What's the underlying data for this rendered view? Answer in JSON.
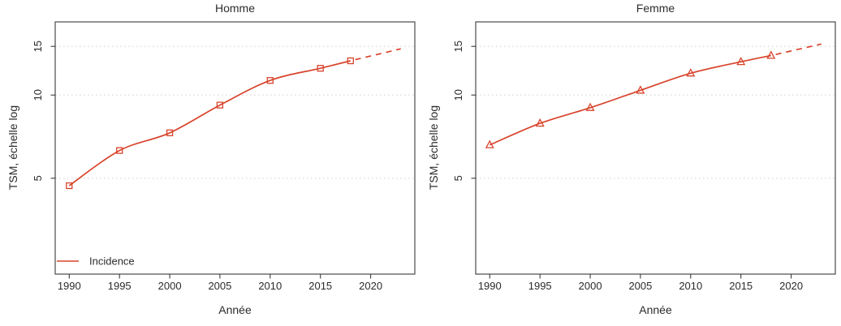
{
  "figure": {
    "accent_color": "#d8432b",
    "grid_color": "#d6d6d6",
    "axis_color": "#3a3a3a",
    "text_color": "#2b2b2b",
    "background": "#ffffff"
  },
  "chart_data": [
    {
      "type": "line",
      "title": "Homme",
      "xlabel": "Année",
      "ylabel": "TSM, échelle log",
      "y_scale": "log",
      "x_ticks": [
        1990,
        1995,
        2000,
        2005,
        2010,
        2015,
        2020
      ],
      "y_ticks": [
        5,
        10,
        15
      ],
      "xlim": [
        1988.6,
        2024.4
      ],
      "ylim": [
        2.25,
        18.4
      ],
      "grid": "horizontal-dotted",
      "legend": {
        "position": "bottom-left",
        "entries": [
          {
            "label": "Incidence",
            "swatch": "line"
          }
        ]
      },
      "series": [
        {
          "name": "Incidence",
          "marker": "open-square",
          "x": [
            1990,
            1995,
            2000,
            2005,
            2010,
            2015,
            2018
          ],
          "y": [
            4.7,
            6.3,
            7.3,
            9.2,
            11.3,
            12.5,
            13.3
          ]
        }
      ],
      "projection": {
        "style": "dashed",
        "x": [
          2018,
          2023
        ],
        "y": [
          13.3,
          14.7
        ]
      }
    },
    {
      "type": "line",
      "title": "Femme",
      "xlabel": "Année",
      "ylabel": "TSM, échelle log",
      "y_scale": "log",
      "x_ticks": [
        1990,
        1995,
        2000,
        2005,
        2010,
        2015,
        2020
      ],
      "y_ticks": [
        5,
        10,
        15
      ],
      "xlim": [
        1988.6,
        2024.4
      ],
      "ylim": [
        2.25,
        18.4
      ],
      "grid": "horizontal-dotted",
      "legend": null,
      "series": [
        {
          "name": "Incidence",
          "marker": "open-triangle",
          "x": [
            1990,
            1995,
            2000,
            2005,
            2010,
            2015,
            2018
          ],
          "y": [
            6.6,
            7.9,
            9.0,
            10.4,
            12.0,
            13.2,
            13.9
          ]
        }
      ],
      "projection": {
        "style": "dashed",
        "x": [
          2018,
          2023
        ],
        "y": [
          13.9,
          15.3
        ]
      }
    }
  ]
}
